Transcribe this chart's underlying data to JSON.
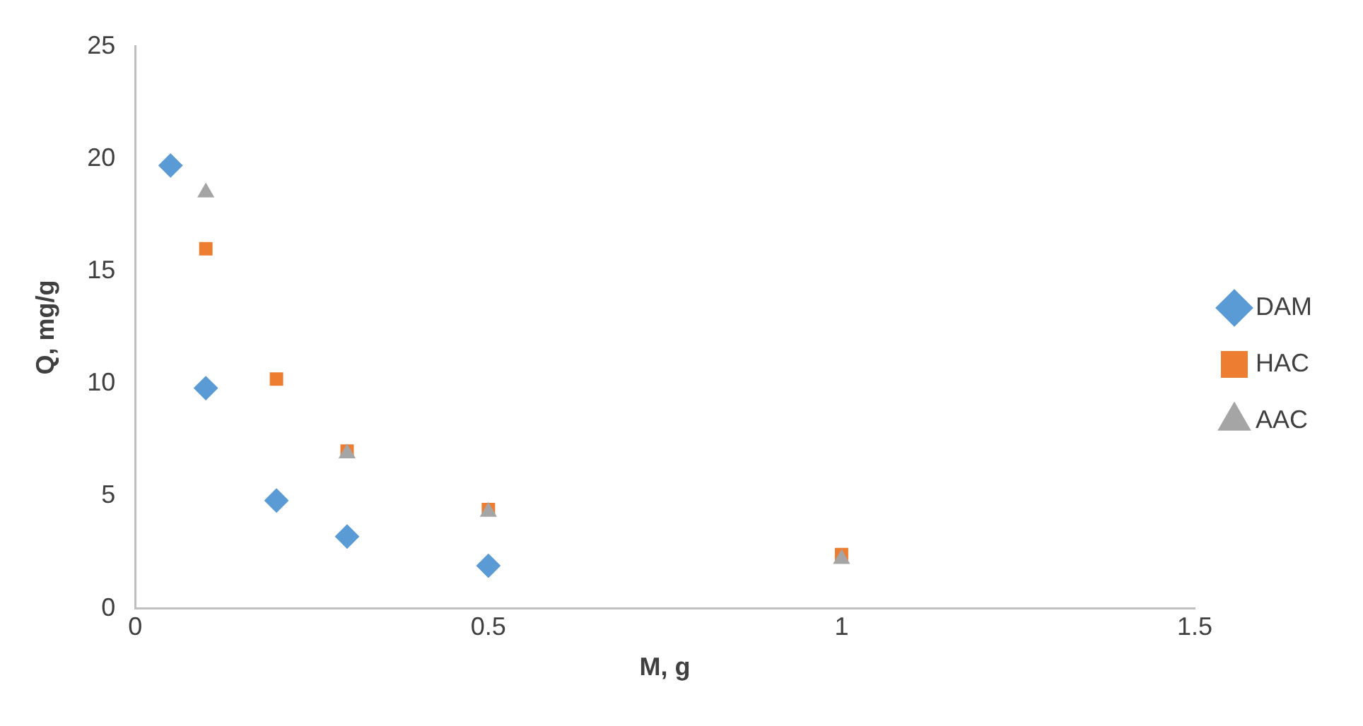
{
  "chart_data": {
    "type": "scatter",
    "xlabel": "M, g",
    "ylabel": "Q, mg/g",
    "xlim": [
      0,
      1.5
    ],
    "xticks": [
      0,
      0.5,
      1,
      1.5
    ],
    "ylim": [
      0,
      25
    ],
    "yticks": [
      0,
      5,
      10,
      15,
      20,
      25
    ],
    "grid": false,
    "legend": "right",
    "series": [
      {
        "name": "DAM",
        "color": "#5b9bd5",
        "marker": "diamond",
        "x": [
          0.05,
          0.1,
          0.2,
          0.3,
          0.5
        ],
        "values": [
          19.7,
          9.8,
          4.8,
          3.2,
          1.9
        ]
      },
      {
        "name": "HAC",
        "color": "#ed7d31",
        "marker": "square",
        "x": [
          0.1,
          0.2,
          0.3,
          0.5,
          1
        ],
        "values": [
          16.0,
          10.2,
          7.0,
          4.4,
          2.4
        ]
      },
      {
        "name": "AAC",
        "color": "#a5a5a5",
        "marker": "triangle",
        "x": [
          0.1,
          0.3,
          0.5,
          1
        ],
        "values": [
          18.5,
          6.9,
          4.3,
          2.2
        ]
      }
    ]
  }
}
